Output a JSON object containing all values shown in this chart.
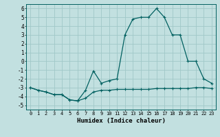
{
  "xlabel": "Humidex (Indice chaleur)",
  "background_color": "#c2e0e0",
  "grid_color": "#a0c8c8",
  "line_color": "#006060",
  "xlim": [
    -0.5,
    23.5
  ],
  "ylim": [
    -5.5,
    6.5
  ],
  "xticks": [
    0,
    1,
    2,
    3,
    4,
    5,
    6,
    7,
    8,
    9,
    10,
    11,
    12,
    13,
    14,
    15,
    16,
    17,
    18,
    19,
    20,
    21,
    22,
    23
  ],
  "yticks": [
    -5,
    -4,
    -3,
    -2,
    -1,
    0,
    1,
    2,
    3,
    4,
    5,
    6
  ],
  "line1_x": [
    0,
    1,
    2,
    3,
    4,
    5,
    6,
    7,
    8,
    9,
    10,
    11,
    12,
    13,
    14,
    15,
    16,
    17,
    18,
    19,
    20,
    21,
    22,
    23
  ],
  "line1_y": [
    -3.0,
    -3.3,
    -3.5,
    -3.8,
    -3.8,
    -4.4,
    -4.5,
    -4.2,
    -3.5,
    -3.3,
    -3.3,
    -3.2,
    -3.2,
    -3.2,
    -3.2,
    -3.2,
    -3.1,
    -3.1,
    -3.1,
    -3.1,
    -3.1,
    -3.0,
    -3.0,
    -3.1
  ],
  "line2_x": [
    0,
    1,
    2,
    3,
    4,
    5,
    6,
    7,
    8,
    9,
    10,
    11,
    12,
    13,
    14,
    15,
    16,
    17,
    18,
    19,
    20,
    21,
    22,
    23
  ],
  "line2_y": [
    -3.0,
    -3.3,
    -3.5,
    -3.8,
    -3.8,
    -4.4,
    -4.5,
    -3.3,
    -1.1,
    -2.5,
    -2.2,
    -2.0,
    3.0,
    4.8,
    5.0,
    5.0,
    6.0,
    5.0,
    3.0,
    3.0,
    0.0,
    0.0,
    -2.0,
    -2.5
  ]
}
